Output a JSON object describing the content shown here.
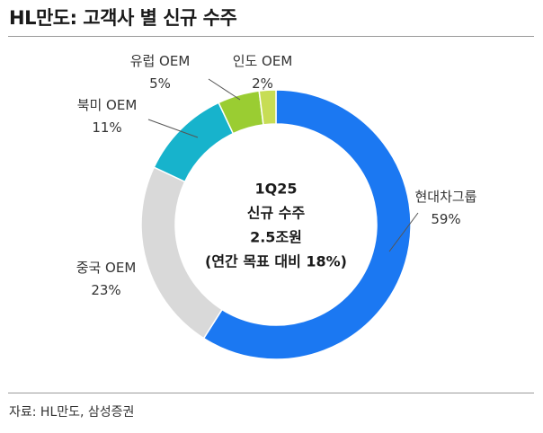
{
  "header": {
    "title": "HL만도: 고객사 별 신규 수주"
  },
  "footer": {
    "source": "자료: HL만도, 삼성증권"
  },
  "chart_data": {
    "type": "pie",
    "variant": "donut",
    "title": "HL만도: 고객사 별 신규 수주",
    "center_text": [
      "1Q25",
      "신규 수주",
      "2.5조원",
      "(연간 목표 대비 18%)"
    ],
    "categories": [
      "현대차그룹",
      "중국 OEM",
      "북미 OEM",
      "유럽 OEM",
      "인도 OEM"
    ],
    "values": [
      59,
      23,
      11,
      5,
      2
    ],
    "value_labels": [
      "59%",
      "23%",
      "11%",
      "5%",
      "2%"
    ],
    "unit": "%",
    "colors": [
      "#1b78f2",
      "#d9d9d9",
      "#17b3cc",
      "#9acd32",
      "#c7dd55"
    ]
  }
}
